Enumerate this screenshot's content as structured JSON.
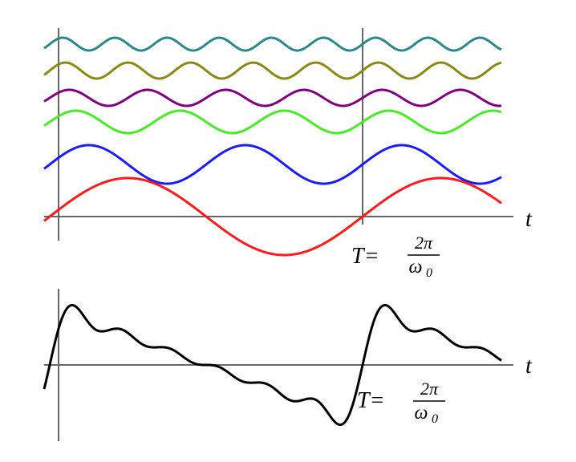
{
  "top_panel": {
    "axis_label": "t",
    "period": {
      "lhs": "T=",
      "numerator": "2π",
      "denominator": "ω",
      "subscript": "0"
    }
  },
  "bottom_panel": {
    "axis_label": "t",
    "period": {
      "lhs": "T=",
      "numerator": "2π",
      "denominator": "ω",
      "subscript": "0"
    }
  }
}
